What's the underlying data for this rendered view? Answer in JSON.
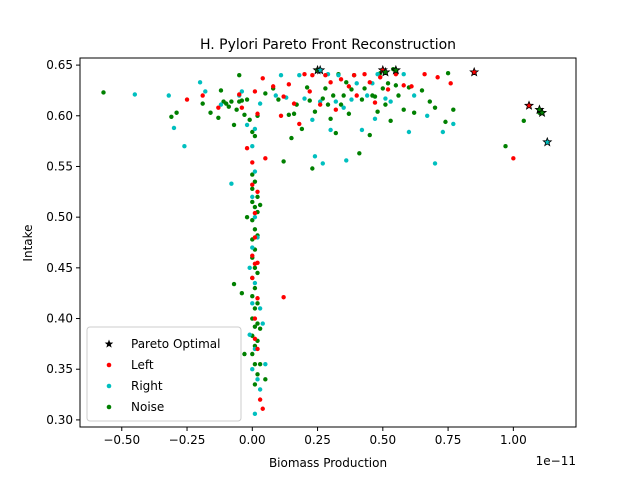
{
  "chart_data": {
    "type": "scatter",
    "title": "H. Pylori Pareto Front Reconstruction",
    "xlabel": "Biomass Production",
    "ylabel": "Intake",
    "x_offset_label": "1e−11",
    "xlim": [
      -0.66,
      1.24
    ],
    "ylim": [
      0.293,
      0.657
    ],
    "x_ticks": [
      -0.5,
      -0.25,
      0.0,
      0.25,
      0.5,
      0.75,
      1.0
    ],
    "x_tick_labels": [
      "−0.50",
      "−0.25",
      "0.00",
      "0.25",
      "0.50",
      "0.75",
      "1.00"
    ],
    "y_ticks": [
      0.3,
      0.35,
      0.4,
      0.45,
      0.5,
      0.55,
      0.6,
      0.65
    ],
    "y_tick_labels": [
      "0.30",
      "0.35",
      "0.40",
      "0.45",
      "0.50",
      "0.55",
      "0.60",
      "0.65"
    ],
    "grid": false,
    "legend_position": "lower-left",
    "legend": [
      {
        "label": "Pareto Optimal",
        "marker": "star",
        "color": "#000000"
      },
      {
        "label": "Left",
        "marker": "dot",
        "color": "#ff0000"
      },
      {
        "label": "Right",
        "marker": "dot",
        "color": "#00bfbf"
      },
      {
        "label": "Noise",
        "marker": "dot",
        "color": "#008000"
      }
    ],
    "series": [
      {
        "name": "Noise",
        "color": "#008000",
        "marker": "dot",
        "points": [
          [
            -0.57,
            0.623
          ],
          [
            -0.31,
            0.599
          ],
          [
            -0.29,
            0.603
          ],
          [
            -0.19,
            0.612
          ],
          [
            -0.16,
            0.603
          ],
          [
            -0.13,
            0.598
          ],
          [
            -0.12,
            0.625
          ],
          [
            -0.11,
            0.614
          ],
          [
            -0.1,
            0.612
          ],
          [
            -0.09,
            0.609
          ],
          [
            -0.08,
            0.614
          ],
          [
            -0.07,
            0.591
          ],
          [
            -0.06,
            0.606
          ],
          [
            -0.05,
            0.614
          ],
          [
            -0.05,
            0.64
          ],
          [
            -0.04,
            0.615
          ],
          [
            -0.03,
            0.601
          ],
          [
            -0.02,
            0.616
          ],
          [
            -0.01,
            0.596
          ],
          [
            0.0,
            0.584
          ],
          [
            0.01,
            0.58
          ],
          [
            0.02,
            0.6
          ],
          [
            0.05,
            0.622
          ],
          [
            0.08,
            0.627
          ],
          [
            0.1,
            0.616
          ],
          [
            0.12,
            0.555
          ],
          [
            0.14,
            0.601
          ],
          [
            0.15,
            0.578
          ],
          [
            0.16,
            0.602
          ],
          [
            0.17,
            0.611
          ],
          [
            0.19,
            0.587
          ],
          [
            0.21,
            0.628
          ],
          [
            0.22,
            0.615
          ],
          [
            0.23,
            0.548
          ],
          [
            0.24,
            0.604
          ],
          [
            0.25,
            0.645
          ],
          [
            0.27,
            0.617
          ],
          [
            0.28,
            0.627
          ],
          [
            0.29,
            0.611
          ],
          [
            0.3,
            0.597
          ],
          [
            0.31,
            0.62
          ],
          [
            0.32,
            0.583
          ],
          [
            0.33,
            0.641
          ],
          [
            0.34,
            0.611
          ],
          [
            0.35,
            0.62
          ],
          [
            0.36,
            0.633
          ],
          [
            0.37,
            0.602
          ],
          [
            0.38,
            0.626
          ],
          [
            0.39,
            0.64
          ],
          [
            0.41,
            0.563
          ],
          [
            0.42,
            0.616
          ],
          [
            0.43,
            0.627
          ],
          [
            0.45,
            0.581
          ],
          [
            0.46,
            0.62
          ],
          [
            0.47,
            0.619
          ],
          [
            0.48,
            0.604
          ],
          [
            0.49,
            0.642
          ],
          [
            0.5,
            0.627
          ],
          [
            0.51,
            0.611
          ],
          [
            0.52,
            0.632
          ],
          [
            0.53,
            0.595
          ],
          [
            0.54,
            0.646
          ],
          [
            0.55,
            0.63
          ],
          [
            0.56,
            0.62
          ],
          [
            0.58,
            0.606
          ],
          [
            0.6,
            0.628
          ],
          [
            0.62,
            0.603
          ],
          [
            0.65,
            0.625
          ],
          [
            0.68,
            0.614
          ],
          [
            0.7,
            0.608
          ],
          [
            0.74,
            0.594
          ],
          [
            0.75,
            0.642
          ],
          [
            0.77,
            0.606
          ],
          [
            0.97,
            0.57
          ],
          [
            1.04,
            0.595
          ],
          [
            1.1,
            0.603
          ],
          [
            -0.07,
            0.434
          ],
          [
            -0.04,
            0.425
          ],
          [
            -0.03,
            0.365
          ],
          [
            -0.02,
            0.5
          ],
          [
            0.0,
            0.542
          ],
          [
            0.0,
            0.528
          ],
          [
            0.0,
            0.515
          ],
          [
            0.0,
            0.497
          ],
          [
            0.0,
            0.478
          ],
          [
            0.0,
            0.46
          ],
          [
            0.0,
            0.44
          ],
          [
            0.0,
            0.422
          ],
          [
            0.0,
            0.4
          ],
          [
            0.0,
            0.383
          ],
          [
            0.0,
            0.365
          ],
          [
            0.01,
            0.535
          ],
          [
            0.01,
            0.51
          ],
          [
            0.01,
            0.488
          ],
          [
            0.01,
            0.468
          ],
          [
            0.01,
            0.45
          ],
          [
            0.01,
            0.43
          ],
          [
            0.01,
            0.41
          ],
          [
            0.01,
            0.392
          ],
          [
            0.01,
            0.373
          ],
          [
            0.01,
            0.355
          ],
          [
            0.01,
            0.335
          ],
          [
            0.02,
            0.52
          ],
          [
            0.02,
            0.505
          ],
          [
            0.02,
            0.482
          ],
          [
            0.02,
            0.445
          ],
          [
            0.02,
            0.415
          ],
          [
            0.02,
            0.395
          ],
          [
            0.02,
            0.378
          ],
          [
            0.02,
            0.345
          ],
          [
            0.03,
            0.512
          ],
          [
            0.03,
            0.39
          ],
          [
            0.03,
            0.355
          ],
          [
            0.05,
            0.34
          ]
        ]
      },
      {
        "name": "Right",
        "color": "#00bfbf",
        "marker": "dot",
        "points": [
          [
            -0.45,
            0.621
          ],
          [
            -0.32,
            0.62
          ],
          [
            -0.3,
            0.588
          ],
          [
            -0.26,
            0.57
          ],
          [
            -0.2,
            0.633
          ],
          [
            -0.18,
            0.624
          ],
          [
            -0.12,
            0.611
          ],
          [
            -0.08,
            0.533
          ],
          [
            -0.05,
            0.62
          ],
          [
            -0.04,
            0.624
          ],
          [
            -0.02,
            0.591
          ],
          [
            0.0,
            0.57
          ],
          [
            0.01,
            0.587
          ],
          [
            0.03,
            0.612
          ],
          [
            0.09,
            0.62
          ],
          [
            0.11,
            0.64
          ],
          [
            0.13,
            0.618
          ],
          [
            0.18,
            0.64
          ],
          [
            0.2,
            0.617
          ],
          [
            0.23,
            0.596
          ],
          [
            0.24,
            0.56
          ],
          [
            0.26,
            0.614
          ],
          [
            0.27,
            0.553
          ],
          [
            0.29,
            0.641
          ],
          [
            0.3,
            0.586
          ],
          [
            0.32,
            0.614
          ],
          [
            0.33,
            0.64
          ],
          [
            0.35,
            0.608
          ],
          [
            0.36,
            0.556
          ],
          [
            0.38,
            0.616
          ],
          [
            0.4,
            0.632
          ],
          [
            0.42,
            0.586
          ],
          [
            0.44,
            0.62
          ],
          [
            0.46,
            0.632
          ],
          [
            0.47,
            0.597
          ],
          [
            0.48,
            0.641
          ],
          [
            0.51,
            0.617
          ],
          [
            0.53,
            0.614
          ],
          [
            0.58,
            0.641
          ],
          [
            0.6,
            0.584
          ],
          [
            0.62,
            0.62
          ],
          [
            0.67,
            0.6
          ],
          [
            0.7,
            0.553
          ],
          [
            0.73,
            0.584
          ],
          [
            0.77,
            0.592
          ],
          [
            -0.01,
            0.45
          ],
          [
            -0.01,
            0.384
          ],
          [
            0.0,
            0.52
          ],
          [
            0.0,
            0.47
          ],
          [
            0.0,
            0.415
          ],
          [
            0.0,
            0.35
          ],
          [
            0.01,
            0.545
          ],
          [
            0.01,
            0.5
          ],
          [
            0.01,
            0.435
          ],
          [
            0.01,
            0.37
          ],
          [
            0.01,
            0.306
          ],
          [
            0.02,
            0.48
          ],
          [
            0.02,
            0.34
          ],
          [
            0.03,
            0.41
          ],
          [
            0.03,
            0.33
          ],
          [
            0.04,
            0.395
          ],
          [
            0.05,
            0.355
          ]
        ]
      },
      {
        "name": "Left",
        "color": "#ff0000",
        "marker": "dot",
        "points": [
          [
            -0.25,
            0.616
          ],
          [
            -0.19,
            0.62
          ],
          [
            -0.13,
            0.608
          ],
          [
            -0.05,
            0.621
          ],
          [
            -0.04,
            0.608
          ],
          [
            -0.02,
            0.568
          ],
          [
            0.01,
            0.624
          ],
          [
            0.02,
            0.602
          ],
          [
            0.04,
            0.637
          ],
          [
            0.05,
            0.558
          ],
          [
            0.08,
            0.629
          ],
          [
            0.11,
            0.6
          ],
          [
            0.12,
            0.619
          ],
          [
            0.14,
            0.631
          ],
          [
            0.16,
            0.612
          ],
          [
            0.18,
            0.592
          ],
          [
            0.2,
            0.641
          ],
          [
            0.22,
            0.624
          ],
          [
            0.23,
            0.64
          ],
          [
            0.26,
            0.611
          ],
          [
            0.28,
            0.64
          ],
          [
            0.3,
            0.633
          ],
          [
            0.32,
            0.606
          ],
          [
            0.34,
            0.636
          ],
          [
            0.37,
            0.629
          ],
          [
            0.39,
            0.64
          ],
          [
            0.4,
            0.62
          ],
          [
            0.43,
            0.641
          ],
          [
            0.45,
            0.633
          ],
          [
            0.47,
            0.613
          ],
          [
            0.49,
            0.638
          ],
          [
            0.52,
            0.626
          ],
          [
            0.55,
            0.641
          ],
          [
            0.58,
            0.63
          ],
          [
            0.61,
            0.629
          ],
          [
            0.66,
            0.641
          ],
          [
            0.71,
            0.638
          ],
          [
            0.76,
            0.632
          ],
          [
            1.0,
            0.558
          ],
          [
            0.0,
            0.554
          ],
          [
            0.0,
            0.532
          ],
          [
            0.0,
            0.462
          ],
          [
            0.0,
            0.44
          ],
          [
            0.01,
            0.504
          ],
          [
            0.01,
            0.48
          ],
          [
            0.01,
            0.454
          ],
          [
            0.01,
            0.4
          ],
          [
            0.01,
            0.38
          ],
          [
            0.02,
            0.525
          ],
          [
            0.02,
            0.455
          ],
          [
            0.02,
            0.42
          ],
          [
            0.02,
            0.37
          ],
          [
            0.03,
            0.32
          ],
          [
            0.04,
            0.311
          ],
          [
            0.12,
            0.421
          ]
        ]
      }
    ],
    "pareto_optimal": [
      {
        "x": 0.25,
        "y": 0.645,
        "color": "#008000"
      },
      {
        "x": 0.26,
        "y": 0.645,
        "color": "#00bfbf"
      },
      {
        "x": 0.5,
        "y": 0.645,
        "color": "#ff0000"
      },
      {
        "x": 0.51,
        "y": 0.643,
        "color": "#008000"
      },
      {
        "x": 0.55,
        "y": 0.645,
        "color": "#008000"
      },
      {
        "x": 0.85,
        "y": 0.643,
        "color": "#ff0000"
      },
      {
        "x": 1.06,
        "y": 0.61,
        "color": "#ff0000"
      },
      {
        "x": 1.1,
        "y": 0.606,
        "color": "#008000"
      },
      {
        "x": 1.11,
        "y": 0.603,
        "color": "#008000"
      },
      {
        "x": 1.13,
        "y": 0.574,
        "color": "#00bfbf"
      }
    ]
  }
}
